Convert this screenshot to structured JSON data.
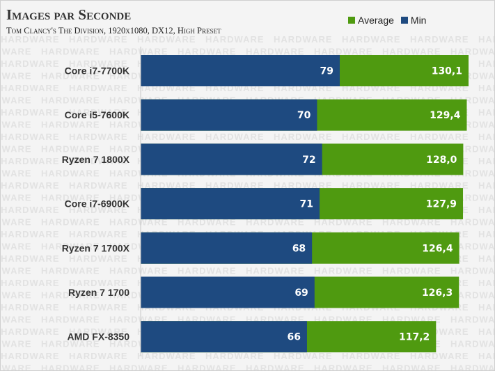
{
  "chart_data": {
    "type": "bar",
    "orientation": "horizontal",
    "title": "Images par Seconde",
    "subtitle": "Tom Clancy's The Division, 1920x1080, DX12, High Preset",
    "categories": [
      "Core i7-7700K",
      "Core i5-7600K",
      "Ryzen 7 1800X",
      "Core i7-6900K",
      "Ryzen 7 1700X",
      "Ryzen 7 1700",
      "AMD FX-8350"
    ],
    "series": [
      {
        "name": "Average",
        "color": "#4f9a10",
        "values": [
          130.1,
          129.4,
          128.0,
          127.9,
          126.4,
          126.3,
          117.2
        ],
        "labels": [
          "130,1",
          "129,4",
          "128,0",
          "127,9",
          "126,4",
          "126,3",
          "117,2"
        ]
      },
      {
        "name": "Min",
        "color": "#1e4a80",
        "values": [
          79,
          70,
          72,
          71,
          68,
          69,
          66
        ],
        "labels": [
          "79",
          "70",
          "72",
          "71",
          "68",
          "69",
          "66"
        ]
      }
    ],
    "xlim": [
      0,
      130.1
    ],
    "grid": false,
    "legend": "top-right",
    "watermark": "HARDWARE"
  }
}
